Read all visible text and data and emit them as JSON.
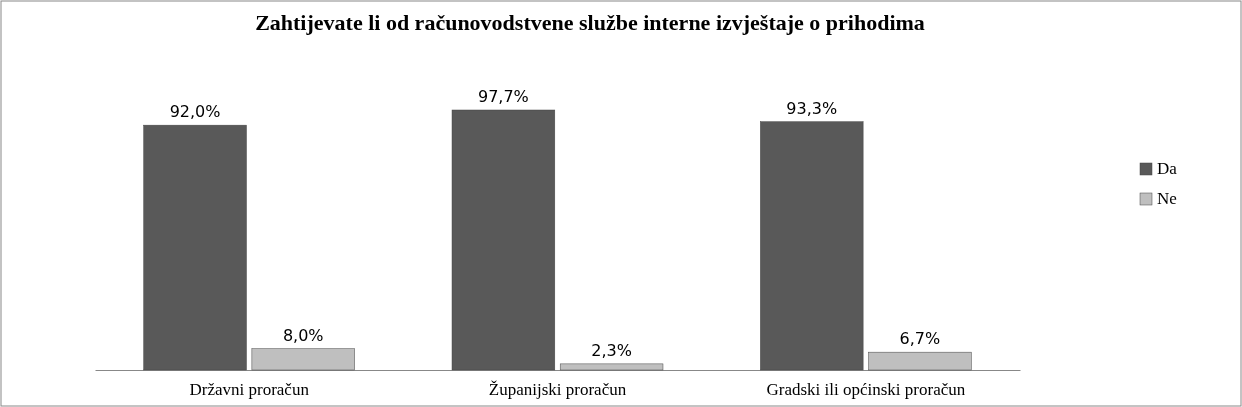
{
  "chart_data": {
    "type": "bar",
    "title": "Zahtijevate li od računovodstvene službe interne izvještaje o prihodima",
    "categories": [
      "Državni proračun",
      "Županijski proračun",
      "Gradski ili općinski proračun"
    ],
    "series": [
      {
        "name": "Da",
        "color": "#595959",
        "values": [
          92.0,
          97.7,
          93.3
        ],
        "value_labels": [
          "92,0%",
          "97,7%",
          "93,3%"
        ]
      },
      {
        "name": "Ne",
        "color": "#bfbfbf",
        "values": [
          8.0,
          2.3,
          6.7
        ],
        "value_labels": [
          "8,0%",
          "2,3%",
          "6,7%"
        ]
      }
    ],
    "legend": "right"
  }
}
